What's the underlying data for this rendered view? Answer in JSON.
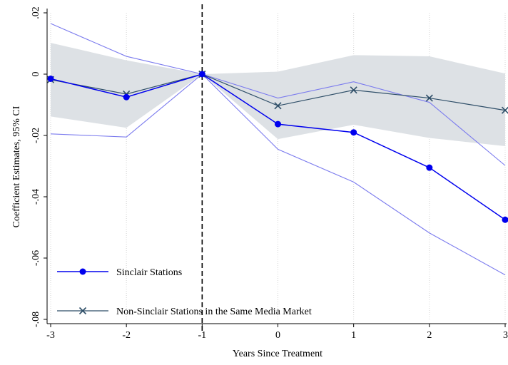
{
  "chart_data": {
    "type": "line",
    "title": "",
    "xlabel": "Years Since Treatment",
    "ylabel": "Coefficient Estimates, 95% CI",
    "x": [
      -3,
      -2,
      -1,
      0,
      1,
      2,
      3
    ],
    "xlim": [
      -3,
      3
    ],
    "ylim": [
      -0.08,
      0.02
    ],
    "x_ticks": [
      -3,
      -2,
      -1,
      0,
      1,
      2,
      3
    ],
    "x_tick_labels": [
      "-3",
      "-2",
      "-1",
      "0",
      "1",
      "2",
      "3"
    ],
    "y_ticks": [
      -0.08,
      -0.06,
      -0.04,
      -0.02,
      0,
      0.02
    ],
    "y_tick_labels": [
      "-.08",
      "-.06",
      "-.04",
      "-.02",
      "0",
      ".02"
    ],
    "vline_x": -1,
    "grid": "vertical dotted",
    "legend_position": "bottom-left",
    "series": [
      {
        "name": "Sinclair Stations",
        "marker": "circle",
        "color": "#0000ee",
        "values": [
          -0.0015,
          -0.0075,
          0.0,
          -0.0163,
          -0.019,
          -0.0305,
          -0.0475
        ],
        "ci_lower": [
          -0.0195,
          -0.0205,
          0.0,
          -0.0245,
          -0.0352,
          -0.0518,
          -0.0655
        ],
        "ci_upper": [
          0.0165,
          0.0058,
          0.0,
          -0.0078,
          -0.0025,
          -0.0092,
          -0.0298
        ],
        "ci_color": "#7b7bee"
      },
      {
        "name": "Non-Sinclair Stations in the Same Media Market",
        "marker": "x",
        "color": "#2e4e68",
        "values": [
          -0.0018,
          -0.0065,
          0.0,
          -0.0103,
          -0.0052,
          -0.0078,
          -0.0118
        ],
        "ci_lower": [
          -0.0138,
          -0.0175,
          0.0,
          -0.0212,
          -0.0165,
          -0.0208,
          -0.0235
        ],
        "ci_upper": [
          0.0102,
          0.0045,
          0.0,
          0.0008,
          0.0062,
          0.0058,
          0.0002
        ],
        "ci_color": "#dde1e5"
      }
    ]
  }
}
